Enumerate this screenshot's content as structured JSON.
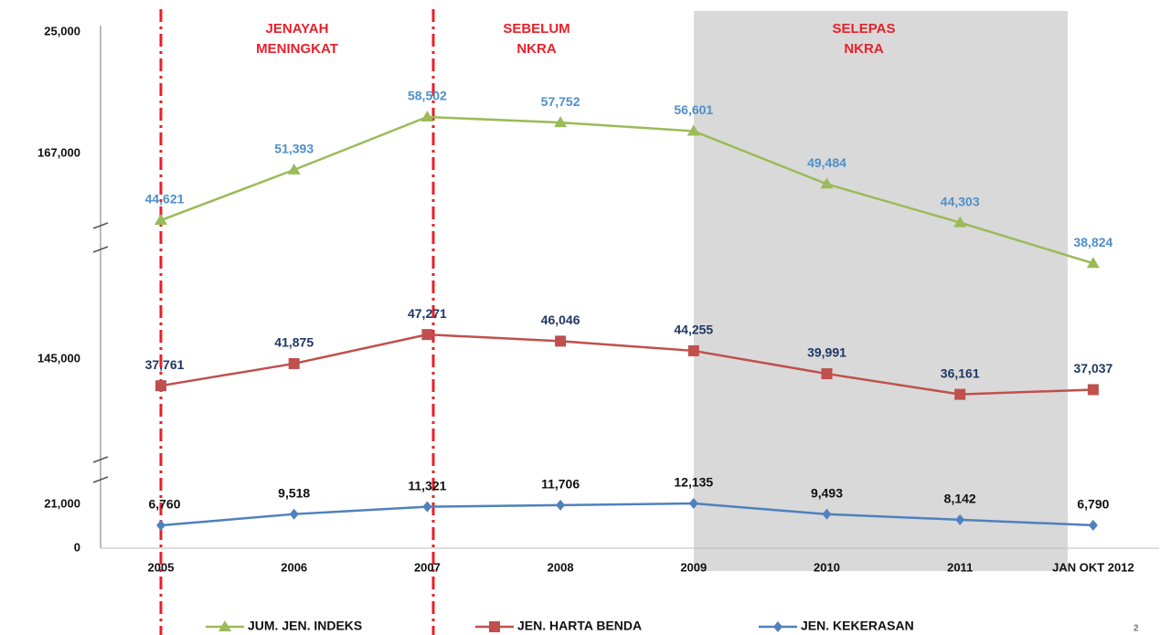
{
  "chart_data": {
    "type": "line",
    "categories": [
      "2005",
      "2006",
      "2007",
      "2008",
      "2009",
      "2010",
      "2011",
      "JAN  OKT 2012"
    ],
    "axis_labels": [
      "25,000",
      "167,000",
      "145,000",
      "21,000",
      "0"
    ],
    "annotations": [
      [
        "JENAYAH",
        "MENINGKAT"
      ],
      [
        "SEBELUM",
        "NKRA"
      ],
      [
        "SELEPAS",
        "NKRA"
      ]
    ],
    "series": [
      {
        "name": "JUM. JEN. INDEKS",
        "color": "#9bbb59",
        "label_color": "#4f8fc9",
        "ylim": [
          37380,
          69920
        ],
        "values": [
          44621,
          51393,
          58502,
          57752,
          56601,
          49484,
          44303,
          38824
        ],
        "value_labels": [
          "44,621",
          "51,393",
          "58,502",
          "57,752",
          "56,601",
          "49,484",
          "44,303",
          "38,824"
        ]
      },
      {
        "name": "JEN. HARTA BENDA",
        "color": "#c0504d",
        "label_color": "#1f3864",
        "ylim": [
          23700,
          61900
        ],
        "values": [
          37761,
          41875,
          47271,
          46046,
          44255,
          39991,
          36161,
          37037
        ],
        "value_labels": [
          "37,761",
          "41,875",
          "47,271",
          "46,046",
          "44,255",
          "39,991",
          "36,161",
          "37,037"
        ]
      },
      {
        "name": "JEN. KEKERASAN",
        "color": "#4f81bd",
        "label_color": "#111111",
        "ylim": [
          1160,
          19080
        ],
        "values": [
          6760,
          9518,
          11321,
          11706,
          12135,
          9493,
          8142,
          6790
        ],
        "value_labels": [
          "6,760",
          "9,518",
          "11,321",
          "11,706",
          "12,135",
          "9,493",
          "8,142",
          "6,790"
        ]
      }
    ]
  }
}
